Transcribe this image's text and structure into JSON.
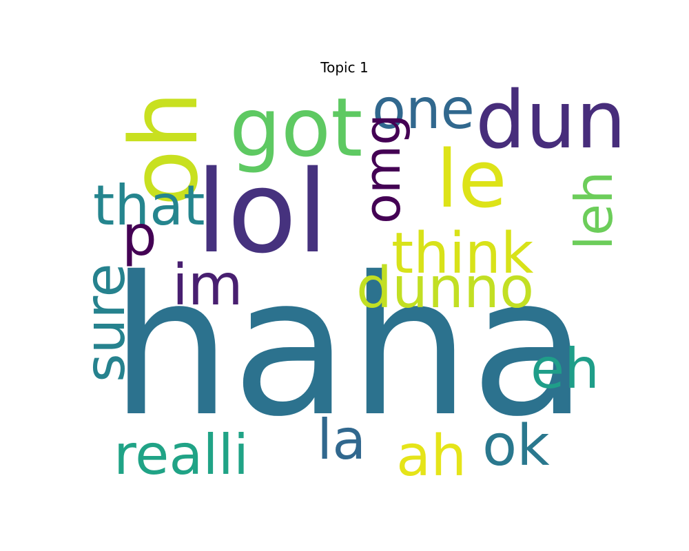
{
  "title": "Topic 1",
  "words": [
    {
      "text": "haha",
      "color": "#2c728e"
    },
    {
      "text": "lol",
      "color": "#46327e"
    },
    {
      "text": "oh",
      "color": "#c8e020"
    },
    {
      "text": "got",
      "color": "#5ec962"
    },
    {
      "text": "one",
      "color": "#31688e"
    },
    {
      "text": "dun",
      "color": "#472d7b"
    },
    {
      "text": "le",
      "color": "#dde318"
    },
    {
      "text": "omg",
      "color": "#440154"
    },
    {
      "text": "that",
      "color": "#25858e"
    },
    {
      "text": "leh",
      "color": "#6ccd5a"
    },
    {
      "text": "p",
      "color": "#440154"
    },
    {
      "text": "think",
      "color": "#d8e219"
    },
    {
      "text": "im",
      "color": "#481f70"
    },
    {
      "text": "dunno",
      "color": "#c2df23"
    },
    {
      "text": "sure",
      "color": "#26828e"
    },
    {
      "text": "eh",
      "color": "#1f9e89"
    },
    {
      "text": "la",
      "color": "#31688e"
    },
    {
      "text": "ok",
      "color": "#2a788e"
    },
    {
      "text": "realli",
      "color": "#20a386"
    },
    {
      "text": "ah",
      "color": "#e5e419"
    }
  ]
}
